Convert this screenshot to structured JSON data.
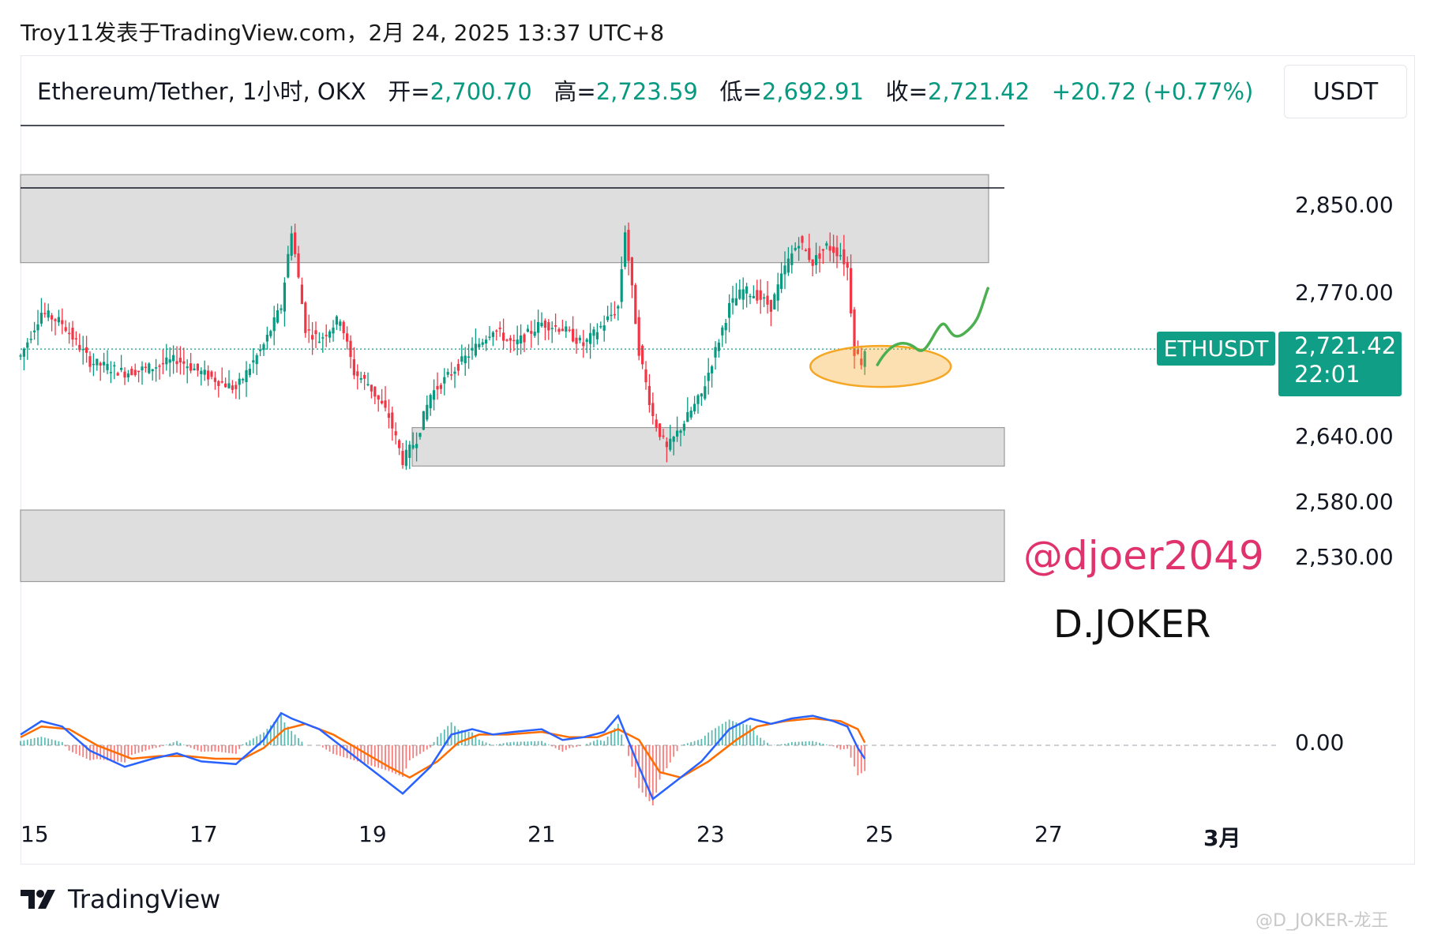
{
  "header": {
    "publish_line": "Troy11发表于TradingView.com，2月 24, 2025 13:37 UTC+8"
  },
  "legend": {
    "symbol": "Ethereum/Tether, 1小时, OKX",
    "open_label": "开=",
    "open_value": "2,700.70",
    "high_label": "高=",
    "high_value": "2,723.59",
    "low_label": "低=",
    "low_value": "2,692.91",
    "close_label": "收=",
    "close_value": "2,721.42",
    "change": "+20.72 (+0.77%)"
  },
  "currency": "USDT",
  "badges": {
    "symbol": "ETHUSDT",
    "price": "2,721.42",
    "countdown": "22:01"
  },
  "annotations": {
    "handle": "@djoer2049",
    "author": "D.JOKER"
  },
  "footer": {
    "brand": "TradingView",
    "watermark": "@D_JOKER-龙王"
  },
  "colors": {
    "up": "#089981",
    "down": "#f23645",
    "macd_line": "#2962ff",
    "signal_line": "#ff6d00",
    "zone_fill": "#dcdcdc",
    "projection": "#4caf50",
    "highlight_ellipse": "#f5a623"
  },
  "chart_data": {
    "type": "candlestick",
    "title": "Ethereum/Tether, 1小时, OKX",
    "x_tick_labels": [
      "15",
      "17",
      "19",
      "21",
      "23",
      "25",
      "27",
      "3月"
    ],
    "y_tick_labels": [
      "2,850.00",
      "2,770.00",
      "2,640.00",
      "2,580.00",
      "2,530.00"
    ],
    "y_ticks": [
      2850,
      2770,
      2640,
      2580,
      2530
    ],
    "ylim": [
      2480,
      2900
    ],
    "last_price": 2721.42,
    "ohlc": {
      "open": 2700.7,
      "high": 2723.59,
      "low": 2692.91,
      "close": 2721.42
    },
    "price_path": [
      [
        0,
        2715
      ],
      [
        6,
        2755
      ],
      [
        12,
        2745
      ],
      [
        20,
        2710
      ],
      [
        30,
        2700
      ],
      [
        38,
        2705
      ],
      [
        45,
        2712
      ],
      [
        52,
        2700
      ],
      [
        62,
        2685
      ],
      [
        70,
        2725
      ],
      [
        75,
        2760
      ],
      [
        78,
        2830
      ],
      [
        82,
        2740
      ],
      [
        86,
        2730
      ],
      [
        92,
        2750
      ],
      [
        96,
        2700
      ],
      [
        100,
        2690
      ],
      [
        106,
        2660
      ],
      [
        110,
        2620
      ],
      [
        114,
        2640
      ],
      [
        118,
        2680
      ],
      [
        124,
        2700
      ],
      [
        130,
        2720
      ],
      [
        136,
        2740
      ],
      [
        142,
        2725
      ],
      [
        150,
        2745
      ],
      [
        156,
        2740
      ],
      [
        162,
        2725
      ],
      [
        168,
        2745
      ],
      [
        172,
        2760
      ],
      [
        174,
        2830
      ],
      [
        178,
        2720
      ],
      [
        182,
        2660
      ],
      [
        186,
        2630
      ],
      [
        190,
        2650
      ],
      [
        196,
        2680
      ],
      [
        200,
        2720
      ],
      [
        204,
        2760
      ],
      [
        208,
        2775
      ],
      [
        212,
        2770
      ],
      [
        216,
        2760
      ],
      [
        220,
        2795
      ],
      [
        224,
        2820
      ],
      [
        228,
        2800
      ],
      [
        232,
        2815
      ],
      [
        236,
        2808
      ],
      [
        238,
        2795
      ],
      [
        240,
        2720
      ],
      [
        242,
        2710
      ],
      [
        243,
        2721
      ]
    ],
    "zones": [
      {
        "low": 2800,
        "high": 2880
      },
      {
        "low": 2615,
        "high": 2650
      },
      {
        "low": 2510,
        "high": 2575
      }
    ],
    "macd": {
      "zero_label": "0.00",
      "macd_line": [
        [
          0,
          4
        ],
        [
          6,
          9
        ],
        [
          12,
          7
        ],
        [
          20,
          -2
        ],
        [
          30,
          -8
        ],
        [
          38,
          -5
        ],
        [
          45,
          -3
        ],
        [
          52,
          -6
        ],
        [
          62,
          -7
        ],
        [
          70,
          2
        ],
        [
          75,
          12
        ],
        [
          78,
          10
        ],
        [
          86,
          6
        ],
        [
          96,
          -4
        ],
        [
          104,
          -12
        ],
        [
          110,
          -18
        ],
        [
          118,
          -8
        ],
        [
          124,
          4
        ],
        [
          130,
          6
        ],
        [
          136,
          4
        ],
        [
          142,
          5
        ],
        [
          150,
          6
        ],
        [
          156,
          2
        ],
        [
          162,
          3
        ],
        [
          168,
          5
        ],
        [
          172,
          11
        ],
        [
          178,
          -8
        ],
        [
          182,
          -20
        ],
        [
          188,
          -14
        ],
        [
          196,
          -6
        ],
        [
          204,
          6
        ],
        [
          210,
          10
        ],
        [
          216,
          8
        ],
        [
          222,
          10
        ],
        [
          228,
          11
        ],
        [
          234,
          9
        ],
        [
          238,
          7
        ],
        [
          241,
          -1
        ],
        [
          243,
          -5
        ]
      ],
      "signal_line": [
        [
          0,
          3
        ],
        [
          6,
          7
        ],
        [
          14,
          6
        ],
        [
          22,
          0
        ],
        [
          32,
          -5
        ],
        [
          40,
          -4
        ],
        [
          48,
          -4
        ],
        [
          56,
          -5
        ],
        [
          64,
          -5
        ],
        [
          70,
          -1
        ],
        [
          76,
          6
        ],
        [
          82,
          8
        ],
        [
          90,
          4
        ],
        [
          98,
          -2
        ],
        [
          106,
          -8
        ],
        [
          112,
          -12
        ],
        [
          120,
          -6
        ],
        [
          126,
          1
        ],
        [
          132,
          4
        ],
        [
          140,
          4
        ],
        [
          150,
          5
        ],
        [
          158,
          3
        ],
        [
          166,
          3
        ],
        [
          172,
          6
        ],
        [
          178,
          2
        ],
        [
          184,
          -10
        ],
        [
          190,
          -12
        ],
        [
          198,
          -6
        ],
        [
          206,
          2
        ],
        [
          212,
          7
        ],
        [
          220,
          9
        ],
        [
          228,
          10
        ],
        [
          236,
          9
        ],
        [
          241,
          6
        ],
        [
          243,
          1
        ]
      ]
    }
  }
}
